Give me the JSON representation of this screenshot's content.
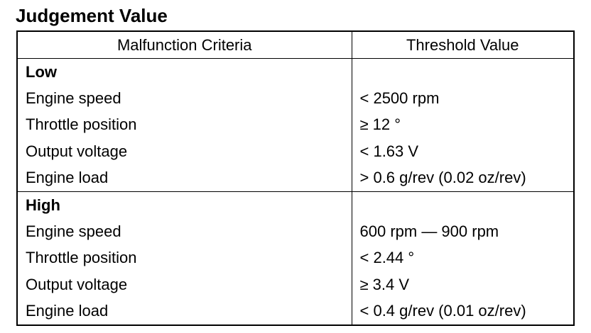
{
  "title": "Judgement Value",
  "table": {
    "header": [
      "Malfunction Criteria",
      "Threshold Value"
    ],
    "groups": [
      {
        "label": "Low",
        "rows": [
          [
            "Engine speed",
            "< 2500 rpm"
          ],
          [
            "Throttle position",
            "≥ 12 °"
          ],
          [
            "Output voltage",
            "< 1.63 V"
          ],
          [
            "Engine load",
            "> 0.6 g/rev (0.02 oz/rev)"
          ]
        ]
      },
      {
        "label": "High",
        "rows": [
          [
            "Engine speed",
            "600 rpm — 900 rpm"
          ],
          [
            "Throttle position",
            "< 2.44 °"
          ],
          [
            "Output voltage",
            "≥ 3.4 V"
          ],
          [
            "Engine load",
            "< 0.4 g/rev (0.01 oz/rev)"
          ]
        ]
      }
    ]
  }
}
